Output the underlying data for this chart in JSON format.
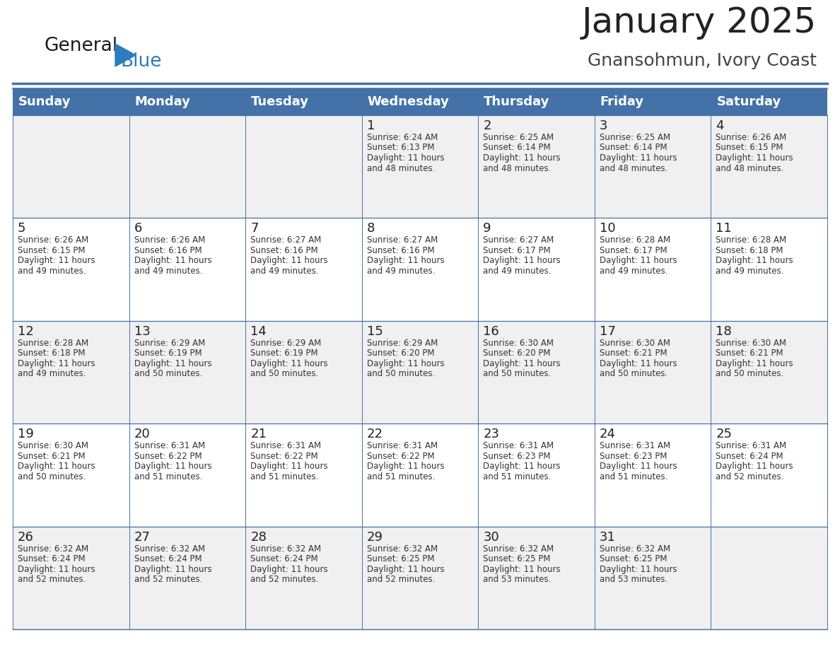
{
  "title": "January 2025",
  "subtitle": "Gnansohmun, Ivory Coast",
  "days_of_week": [
    "Sunday",
    "Monday",
    "Tuesday",
    "Wednesday",
    "Thursday",
    "Friday",
    "Saturday"
  ],
  "header_bg": "#4472a8",
  "header_text_color": "#ffffff",
  "cell_bg_even": "#f0f0f0",
  "cell_bg_odd": "#ffffff",
  "cell_border_color": "#4472a8",
  "title_color": "#222222",
  "subtitle_color": "#444444",
  "logo_general_color": "#1a1a1a",
  "logo_blue_color": "#2e7bbf",
  "weeks": [
    [
      null,
      null,
      null,
      {
        "day": 1,
        "sunrise": "6:24 AM",
        "sunset": "6:13 PM",
        "daylight_h": "11 hours",
        "daylight_m": "and 48 minutes."
      },
      {
        "day": 2,
        "sunrise": "6:25 AM",
        "sunset": "6:14 PM",
        "daylight_h": "11 hours",
        "daylight_m": "and 48 minutes."
      },
      {
        "day": 3,
        "sunrise": "6:25 AM",
        "sunset": "6:14 PM",
        "daylight_h": "11 hours",
        "daylight_m": "and 48 minutes."
      },
      {
        "day": 4,
        "sunrise": "6:26 AM",
        "sunset": "6:15 PM",
        "daylight_h": "11 hours",
        "daylight_m": "and 48 minutes."
      }
    ],
    [
      {
        "day": 5,
        "sunrise": "6:26 AM",
        "sunset": "6:15 PM",
        "daylight_h": "11 hours",
        "daylight_m": "and 49 minutes."
      },
      {
        "day": 6,
        "sunrise": "6:26 AM",
        "sunset": "6:16 PM",
        "daylight_h": "11 hours",
        "daylight_m": "and 49 minutes."
      },
      {
        "day": 7,
        "sunrise": "6:27 AM",
        "sunset": "6:16 PM",
        "daylight_h": "11 hours",
        "daylight_m": "and 49 minutes."
      },
      {
        "day": 8,
        "sunrise": "6:27 AM",
        "sunset": "6:16 PM",
        "daylight_h": "11 hours",
        "daylight_m": "and 49 minutes."
      },
      {
        "day": 9,
        "sunrise": "6:27 AM",
        "sunset": "6:17 PM",
        "daylight_h": "11 hours",
        "daylight_m": "and 49 minutes."
      },
      {
        "day": 10,
        "sunrise": "6:28 AM",
        "sunset": "6:17 PM",
        "daylight_h": "11 hours",
        "daylight_m": "and 49 minutes."
      },
      {
        "day": 11,
        "sunrise": "6:28 AM",
        "sunset": "6:18 PM",
        "daylight_h": "11 hours",
        "daylight_m": "and 49 minutes."
      }
    ],
    [
      {
        "day": 12,
        "sunrise": "6:28 AM",
        "sunset": "6:18 PM",
        "daylight_h": "11 hours",
        "daylight_m": "and 49 minutes."
      },
      {
        "day": 13,
        "sunrise": "6:29 AM",
        "sunset": "6:19 PM",
        "daylight_h": "11 hours",
        "daylight_m": "and 50 minutes."
      },
      {
        "day": 14,
        "sunrise": "6:29 AM",
        "sunset": "6:19 PM",
        "daylight_h": "11 hours",
        "daylight_m": "and 50 minutes."
      },
      {
        "day": 15,
        "sunrise": "6:29 AM",
        "sunset": "6:20 PM",
        "daylight_h": "11 hours",
        "daylight_m": "and 50 minutes."
      },
      {
        "day": 16,
        "sunrise": "6:30 AM",
        "sunset": "6:20 PM",
        "daylight_h": "11 hours",
        "daylight_m": "and 50 minutes."
      },
      {
        "day": 17,
        "sunrise": "6:30 AM",
        "sunset": "6:21 PM",
        "daylight_h": "11 hours",
        "daylight_m": "and 50 minutes."
      },
      {
        "day": 18,
        "sunrise": "6:30 AM",
        "sunset": "6:21 PM",
        "daylight_h": "11 hours",
        "daylight_m": "and 50 minutes."
      }
    ],
    [
      {
        "day": 19,
        "sunrise": "6:30 AM",
        "sunset": "6:21 PM",
        "daylight_h": "11 hours",
        "daylight_m": "and 50 minutes."
      },
      {
        "day": 20,
        "sunrise": "6:31 AM",
        "sunset": "6:22 PM",
        "daylight_h": "11 hours",
        "daylight_m": "and 51 minutes."
      },
      {
        "day": 21,
        "sunrise": "6:31 AM",
        "sunset": "6:22 PM",
        "daylight_h": "11 hours",
        "daylight_m": "and 51 minutes."
      },
      {
        "day": 22,
        "sunrise": "6:31 AM",
        "sunset": "6:22 PM",
        "daylight_h": "11 hours",
        "daylight_m": "and 51 minutes."
      },
      {
        "day": 23,
        "sunrise": "6:31 AM",
        "sunset": "6:23 PM",
        "daylight_h": "11 hours",
        "daylight_m": "and 51 minutes."
      },
      {
        "day": 24,
        "sunrise": "6:31 AM",
        "sunset": "6:23 PM",
        "daylight_h": "11 hours",
        "daylight_m": "and 51 minutes."
      },
      {
        "day": 25,
        "sunrise": "6:31 AM",
        "sunset": "6:24 PM",
        "daylight_h": "11 hours",
        "daylight_m": "and 52 minutes."
      }
    ],
    [
      {
        "day": 26,
        "sunrise": "6:32 AM",
        "sunset": "6:24 PM",
        "daylight_h": "11 hours",
        "daylight_m": "and 52 minutes."
      },
      {
        "day": 27,
        "sunrise": "6:32 AM",
        "sunset": "6:24 PM",
        "daylight_h": "11 hours",
        "daylight_m": "and 52 minutes."
      },
      {
        "day": 28,
        "sunrise": "6:32 AM",
        "sunset": "6:24 PM",
        "daylight_h": "11 hours",
        "daylight_m": "and 52 minutes."
      },
      {
        "day": 29,
        "sunrise": "6:32 AM",
        "sunset": "6:25 PM",
        "daylight_h": "11 hours",
        "daylight_m": "and 52 minutes."
      },
      {
        "day": 30,
        "sunrise": "6:32 AM",
        "sunset": "6:25 PM",
        "daylight_h": "11 hours",
        "daylight_m": "and 53 minutes."
      },
      {
        "day": 31,
        "sunrise": "6:32 AM",
        "sunset": "6:25 PM",
        "daylight_h": "11 hours",
        "daylight_m": "and 53 minutes."
      },
      null
    ]
  ]
}
